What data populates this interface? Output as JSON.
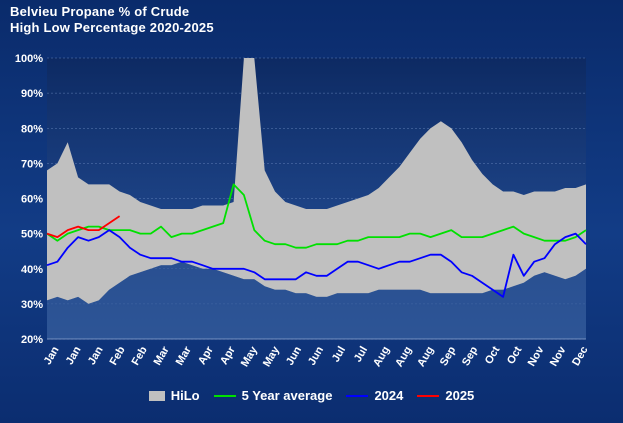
{
  "chart_data": {
    "type": "area",
    "title_line1": "Belvieu Propane % of Crude",
    "title_line2": "High Low Percentage 2020-2025",
    "ylim": [
      20,
      100
    ],
    "y_ticks": [
      "20%",
      "30%",
      "40%",
      "50%",
      "60%",
      "70%",
      "80%",
      "90%",
      "100%"
    ],
    "x_ticks": [
      "Jan",
      "Jan",
      "Jan",
      "Feb",
      "Feb",
      "Mar",
      "Mar",
      "Apr",
      "Apr",
      "May",
      "May",
      "Jun",
      "Jun",
      "Jul",
      "Jul",
      "Aug",
      "Aug",
      "Aug",
      "Sep",
      "Sep",
      "Oct",
      "Oct",
      "Nov",
      "Nov",
      "Dec"
    ],
    "x_count": 53,
    "legend": [
      "HiLo",
      "5 Year average",
      "2024",
      "2025"
    ],
    "colors": {
      "hilo": "#c0c0c0",
      "avg": "#00e000",
      "y2024": "#0000ff",
      "y2025": "#ff0000",
      "band_low_fill": "#2f5596"
    },
    "series": [
      {
        "name": "HiLo",
        "high": [
          68,
          70,
          76,
          66,
          64,
          64,
          64,
          62,
          61,
          59,
          58,
          57,
          57,
          57,
          57,
          58,
          58,
          58,
          59,
          100,
          100,
          68,
          62,
          59,
          58,
          57,
          57,
          57,
          58,
          59,
          60,
          61,
          63,
          66,
          69,
          73,
          77,
          80,
          82,
          80,
          76,
          71,
          67,
          64,
          62,
          62,
          61,
          62,
          62,
          62,
          63,
          63,
          64
        ],
        "low": [
          31,
          32,
          31,
          32,
          30,
          31,
          34,
          36,
          38,
          39,
          40,
          41,
          41,
          42,
          41,
          40,
          40,
          39,
          38,
          37,
          37,
          35,
          34,
          34,
          33,
          33,
          32,
          32,
          33,
          33,
          33,
          33,
          34,
          34,
          34,
          34,
          34,
          33,
          33,
          33,
          33,
          33,
          33,
          34,
          34,
          35,
          36,
          38,
          39,
          38,
          37,
          38,
          40
        ]
      },
      {
        "name": "5 Year average",
        "values": [
          50,
          48,
          50,
          51,
          52,
          52,
          51,
          51,
          51,
          50,
          50,
          52,
          49,
          50,
          50,
          51,
          52,
          53,
          64,
          61,
          51,
          48,
          47,
          47,
          46,
          46,
          47,
          47,
          47,
          48,
          48,
          49,
          49,
          49,
          49,
          50,
          50,
          49,
          50,
          51,
          49,
          49,
          49,
          50,
          51,
          52,
          50,
          49,
          48,
          48,
          48,
          49,
          51
        ]
      },
      {
        "name": "2024",
        "values": [
          41,
          42,
          46,
          49,
          48,
          49,
          51,
          49,
          46,
          44,
          43,
          43,
          43,
          42,
          42,
          41,
          40,
          40,
          40,
          40,
          39,
          37,
          37,
          37,
          37,
          39,
          38,
          38,
          40,
          42,
          42,
          41,
          40,
          41,
          42,
          42,
          43,
          44,
          44,
          42,
          39,
          38,
          36,
          34,
          32,
          44,
          38,
          42,
          43,
          47,
          49,
          50,
          47
        ]
      },
      {
        "name": "2025",
        "values": [
          50,
          49,
          51,
          52,
          51,
          51,
          53,
          55
        ]
      }
    ]
  }
}
